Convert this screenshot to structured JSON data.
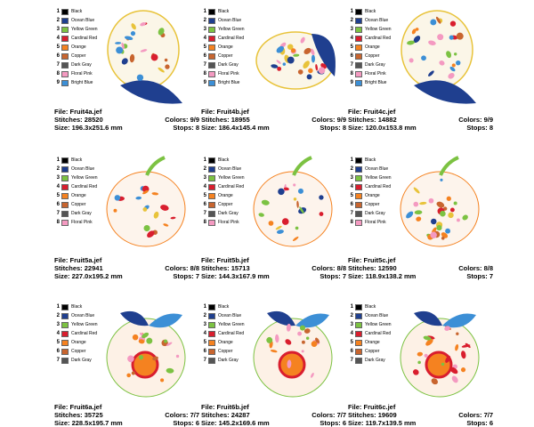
{
  "cards": [
    {
      "legend": [
        {
          "num": "1",
          "name": "Black",
          "color": "#000000"
        },
        {
          "num": "2",
          "name": "Ocean Blue",
          "color": "#1f3f8f"
        },
        {
          "num": "3",
          "name": "Yellow Green",
          "color": "#7cc242"
        },
        {
          "num": "4",
          "name": "Cardinal Red",
          "color": "#d91e2e"
        },
        {
          "num": "5",
          "name": "Orange",
          "color": "#f58220"
        },
        {
          "num": "6",
          "name": "Copper",
          "color": "#c8652f"
        },
        {
          "num": "7",
          "name": "Dark Gray",
          "color": "#555555"
        },
        {
          "num": "8",
          "name": "Floral Pink",
          "color": "#f49ac1"
        },
        {
          "num": "9",
          "name": "Bright Blue",
          "color": "#3c8fd6"
        }
      ],
      "file": "File: Fruit4a.jef",
      "stitches": "Stitches: 28520",
      "size": "Size: 196.3x251.6 mm",
      "colors": "Colors: 9/9",
      "stops": "Stops: 8"
    },
    {
      "legend": [
        {
          "num": "1",
          "name": "Black",
          "color": "#000000"
        },
        {
          "num": "2",
          "name": "Ocean Blue",
          "color": "#1f3f8f"
        },
        {
          "num": "3",
          "name": "Yellow Green",
          "color": "#7cc242"
        },
        {
          "num": "4",
          "name": "Cardinal Red",
          "color": "#d91e2e"
        },
        {
          "num": "5",
          "name": "Orange",
          "color": "#f58220"
        },
        {
          "num": "6",
          "name": "Copper",
          "color": "#c8652f"
        },
        {
          "num": "7",
          "name": "Dark Gray",
          "color": "#555555"
        },
        {
          "num": "8",
          "name": "Floral Pink",
          "color": "#f49ac1"
        },
        {
          "num": "9",
          "name": "Bright Blue",
          "color": "#3c8fd6"
        }
      ],
      "file": "File: Fruit4b.jef",
      "stitches": "Stitches: 18955",
      "size": "Size: 186.4x145.4 mm",
      "colors": "Colors: 9/9",
      "stops": "Stops: 8"
    },
    {
      "legend": [
        {
          "num": "1",
          "name": "Black",
          "color": "#000000"
        },
        {
          "num": "2",
          "name": "Ocean Blue",
          "color": "#1f3f8f"
        },
        {
          "num": "3",
          "name": "Yellow Green",
          "color": "#7cc242"
        },
        {
          "num": "4",
          "name": "Cardinal Red",
          "color": "#d91e2e"
        },
        {
          "num": "5",
          "name": "Orange",
          "color": "#f58220"
        },
        {
          "num": "6",
          "name": "Copper",
          "color": "#c8652f"
        },
        {
          "num": "7",
          "name": "Dark Gray",
          "color": "#555555"
        },
        {
          "num": "8",
          "name": "Floral Pink",
          "color": "#f49ac1"
        },
        {
          "num": "9",
          "name": "Bright Blue",
          "color": "#3c8fd6"
        }
      ],
      "file": "File: Fruit4c.jef",
      "stitches": "Stitches: 14882",
      "size": "Size: 120.0x153.8 mm",
      "colors": "Colors: 9/9",
      "stops": "Stops: 8"
    },
    {
      "legend": [
        {
          "num": "1",
          "name": "Black",
          "color": "#000000"
        },
        {
          "num": "2",
          "name": "Ocean Blue",
          "color": "#1f3f8f"
        },
        {
          "num": "3",
          "name": "Yellow Green",
          "color": "#7cc242"
        },
        {
          "num": "4",
          "name": "Cardinal Red",
          "color": "#d91e2e"
        },
        {
          "num": "5",
          "name": "Orange",
          "color": "#f58220"
        },
        {
          "num": "6",
          "name": "Copper",
          "color": "#c8652f"
        },
        {
          "num": "7",
          "name": "Dark Gray",
          "color": "#555555"
        },
        {
          "num": "8",
          "name": "Floral Pink",
          "color": "#f49ac1"
        }
      ],
      "file": "File: Fruit5a.jef",
      "stitches": "Stitches: 22941",
      "size": "Size: 227.0x195.2 mm",
      "colors": "Colors: 8/8",
      "stops": "Stops: 7"
    },
    {
      "legend": [
        {
          "num": "1",
          "name": "Black",
          "color": "#000000"
        },
        {
          "num": "2",
          "name": "Ocean Blue",
          "color": "#1f3f8f"
        },
        {
          "num": "3",
          "name": "Yellow Green",
          "color": "#7cc242"
        },
        {
          "num": "4",
          "name": "Cardinal Red",
          "color": "#d91e2e"
        },
        {
          "num": "5",
          "name": "Orange",
          "color": "#f58220"
        },
        {
          "num": "6",
          "name": "Copper",
          "color": "#c8652f"
        },
        {
          "num": "7",
          "name": "Dark Gray",
          "color": "#555555"
        },
        {
          "num": "8",
          "name": "Floral Pink",
          "color": "#f49ac1"
        }
      ],
      "file": "File: Fruit5b.jef",
      "stitches": "Stitches: 15713",
      "size": "Size: 144.3x167.9 mm",
      "colors": "Colors: 8/8",
      "stops": "Stops: 7"
    },
    {
      "legend": [
        {
          "num": "1",
          "name": "Black",
          "color": "#000000"
        },
        {
          "num": "2",
          "name": "Ocean Blue",
          "color": "#1f3f8f"
        },
        {
          "num": "3",
          "name": "Yellow Green",
          "color": "#7cc242"
        },
        {
          "num": "4",
          "name": "Cardinal Red",
          "color": "#d91e2e"
        },
        {
          "num": "5",
          "name": "Orange",
          "color": "#f58220"
        },
        {
          "num": "6",
          "name": "Copper",
          "color": "#c8652f"
        },
        {
          "num": "7",
          "name": "Dark Gray",
          "color": "#555555"
        },
        {
          "num": "8",
          "name": "Floral Pink",
          "color": "#f49ac1"
        }
      ],
      "file": "File: Fruit5c.jef",
      "stitches": "Stitches: 12590",
      "size": "Size: 118.9x138.2 mm",
      "colors": "Colors: 8/8",
      "stops": "Stops: 7"
    },
    {
      "legend": [
        {
          "num": "1",
          "name": "Black",
          "color": "#000000"
        },
        {
          "num": "2",
          "name": "Ocean Blue",
          "color": "#1f3f8f"
        },
        {
          "num": "3",
          "name": "Yellow Green",
          "color": "#7cc242"
        },
        {
          "num": "4",
          "name": "Cardinal Red",
          "color": "#d91e2e"
        },
        {
          "num": "5",
          "name": "Orange",
          "color": "#f58220"
        },
        {
          "num": "6",
          "name": "Copper",
          "color": "#c8652f"
        },
        {
          "num": "7",
          "name": "Dark Gray",
          "color": "#555555"
        }
      ],
      "file": "File: Fruit6a.jef",
      "stitches": "Stitches: 35725",
      "size": "Size: 228.5x195.7 mm",
      "colors": "Colors: 7/7",
      "stops": "Stops: 6"
    },
    {
      "legend": [
        {
          "num": "1",
          "name": "Black",
          "color": "#000000"
        },
        {
          "num": "2",
          "name": "Ocean Blue",
          "color": "#1f3f8f"
        },
        {
          "num": "3",
          "name": "Yellow Green",
          "color": "#7cc242"
        },
        {
          "num": "4",
          "name": "Cardinal Red",
          "color": "#d91e2e"
        },
        {
          "num": "5",
          "name": "Orange",
          "color": "#f58220"
        },
        {
          "num": "6",
          "name": "Copper",
          "color": "#c8652f"
        },
        {
          "num": "7",
          "name": "Dark Gray",
          "color": "#555555"
        }
      ],
      "file": "File: Fruit6b.jef",
      "stitches": "Stitches: 24287",
      "size": "Size: 145.2x169.6 mm",
      "colors": "Colors: 7/7",
      "stops": "Stops: 6"
    },
    {
      "legend": [
        {
          "num": "1",
          "name": "Black",
          "color": "#000000"
        },
        {
          "num": "2",
          "name": "Ocean Blue",
          "color": "#1f3f8f"
        },
        {
          "num": "3",
          "name": "Yellow Green",
          "color": "#7cc242"
        },
        {
          "num": "4",
          "name": "Cardinal Red",
          "color": "#d91e2e"
        },
        {
          "num": "5",
          "name": "Orange",
          "color": "#f58220"
        },
        {
          "num": "6",
          "name": "Copper",
          "color": "#c8652f"
        },
        {
          "num": "7",
          "name": "Dark Gray",
          "color": "#555555"
        }
      ],
      "file": "File: Fruit6c.jef",
      "stitches": "Stitches: 19609",
      "size": "Size: 119.7x139.5 mm",
      "colors": "Colors: 7/7",
      "stops": "Stops: 6"
    }
  ]
}
